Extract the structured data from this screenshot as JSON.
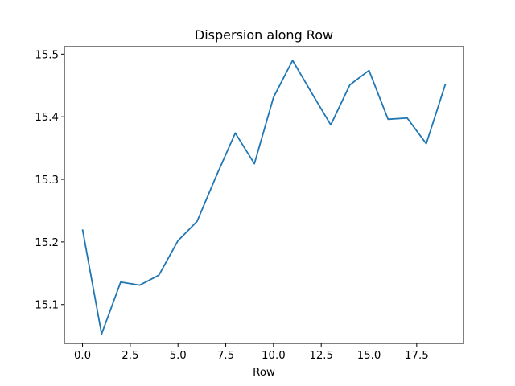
{
  "chart_data": {
    "type": "line",
    "title": "Dispersion along Row",
    "xlabel": "Row",
    "ylabel": "",
    "xlim": [
      -0.95,
      19.95
    ],
    "ylim": [
      15.038,
      15.512
    ],
    "xticks": [
      0.0,
      2.5,
      5.0,
      7.5,
      10.0,
      12.5,
      15.0,
      17.5
    ],
    "xtick_labels": [
      "0.0",
      "2.5",
      "5.0",
      "7.5",
      "10.0",
      "12.5",
      "15.0",
      "17.5"
    ],
    "yticks": [
      15.1,
      15.2,
      15.3,
      15.4,
      15.5
    ],
    "ytick_labels": [
      "15.1",
      "15.2",
      "15.3",
      "15.4",
      "15.5"
    ],
    "grid": false,
    "color": "#1f77b4",
    "series": [
      {
        "x": [
          0,
          1,
          2,
          3,
          4,
          5,
          6,
          7,
          8,
          9,
          10,
          11,
          12,
          13,
          14,
          15,
          16,
          17,
          18,
          19
        ],
        "values": [
          15.22,
          15.053,
          15.136,
          15.131,
          15.147,
          15.202,
          15.233,
          15.305,
          15.374,
          15.325,
          15.431,
          15.49,
          15.438,
          15.387,
          15.451,
          15.474,
          15.396,
          15.398,
          15.357,
          15.452
        ]
      }
    ]
  }
}
